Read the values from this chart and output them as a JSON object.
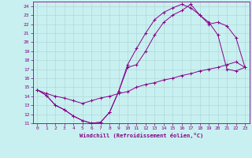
{
  "xlabel": "Windchill (Refroidissement éolien,°C)",
  "bg_color": "#c8f0f0",
  "grid_color": "#b0d8d8",
  "line_color": "#880088",
  "xlim": [
    -0.5,
    23.5
  ],
  "ylim": [
    11,
    24.5
  ],
  "xticks": [
    0,
    1,
    2,
    3,
    4,
    5,
    6,
    7,
    8,
    9,
    10,
    11,
    12,
    13,
    14,
    15,
    16,
    17,
    18,
    19,
    20,
    21,
    22,
    23
  ],
  "yticks": [
    11,
    12,
    13,
    14,
    15,
    16,
    17,
    18,
    19,
    20,
    21,
    22,
    23,
    24
  ],
  "curve1_x": [
    0,
    1,
    2,
    3,
    4,
    5,
    6,
    7,
    8,
    9,
    10,
    11,
    12,
    13,
    14,
    15,
    16,
    17,
    18,
    19,
    20,
    21,
    22,
    23
  ],
  "curve1_y": [
    14.7,
    14.1,
    13.0,
    12.5,
    11.8,
    11.3,
    11.0,
    11.1,
    12.2,
    14.5,
    17.5,
    19.3,
    21.0,
    22.5,
    23.3,
    23.8,
    24.2,
    23.8,
    23.0,
    22.2,
    20.8,
    17.0,
    16.8,
    17.2
  ],
  "curve2_x": [
    0,
    1,
    2,
    3,
    4,
    5,
    6,
    7,
    8,
    9,
    10,
    11,
    12,
    13,
    14,
    15,
    16,
    17,
    18,
    19,
    20,
    21,
    22,
    23
  ],
  "curve2_y": [
    14.7,
    14.1,
    13.0,
    12.5,
    11.8,
    11.3,
    11.0,
    11.1,
    12.2,
    14.5,
    17.2,
    17.5,
    19.0,
    20.8,
    22.2,
    23.0,
    23.5,
    24.2,
    23.0,
    22.0,
    22.2,
    21.8,
    20.5,
    17.2
  ],
  "curve3_x": [
    0,
    1,
    2,
    3,
    4,
    5,
    6,
    7,
    8,
    9,
    10,
    11,
    12,
    13,
    14,
    15,
    16,
    17,
    18,
    19,
    20,
    21,
    22,
    23
  ],
  "curve3_y": [
    14.7,
    14.3,
    14.0,
    13.8,
    13.5,
    13.2,
    13.5,
    13.8,
    14.0,
    14.3,
    14.5,
    15.0,
    15.3,
    15.5,
    15.8,
    16.0,
    16.3,
    16.5,
    16.8,
    17.0,
    17.2,
    17.5,
    17.8,
    17.2
  ]
}
